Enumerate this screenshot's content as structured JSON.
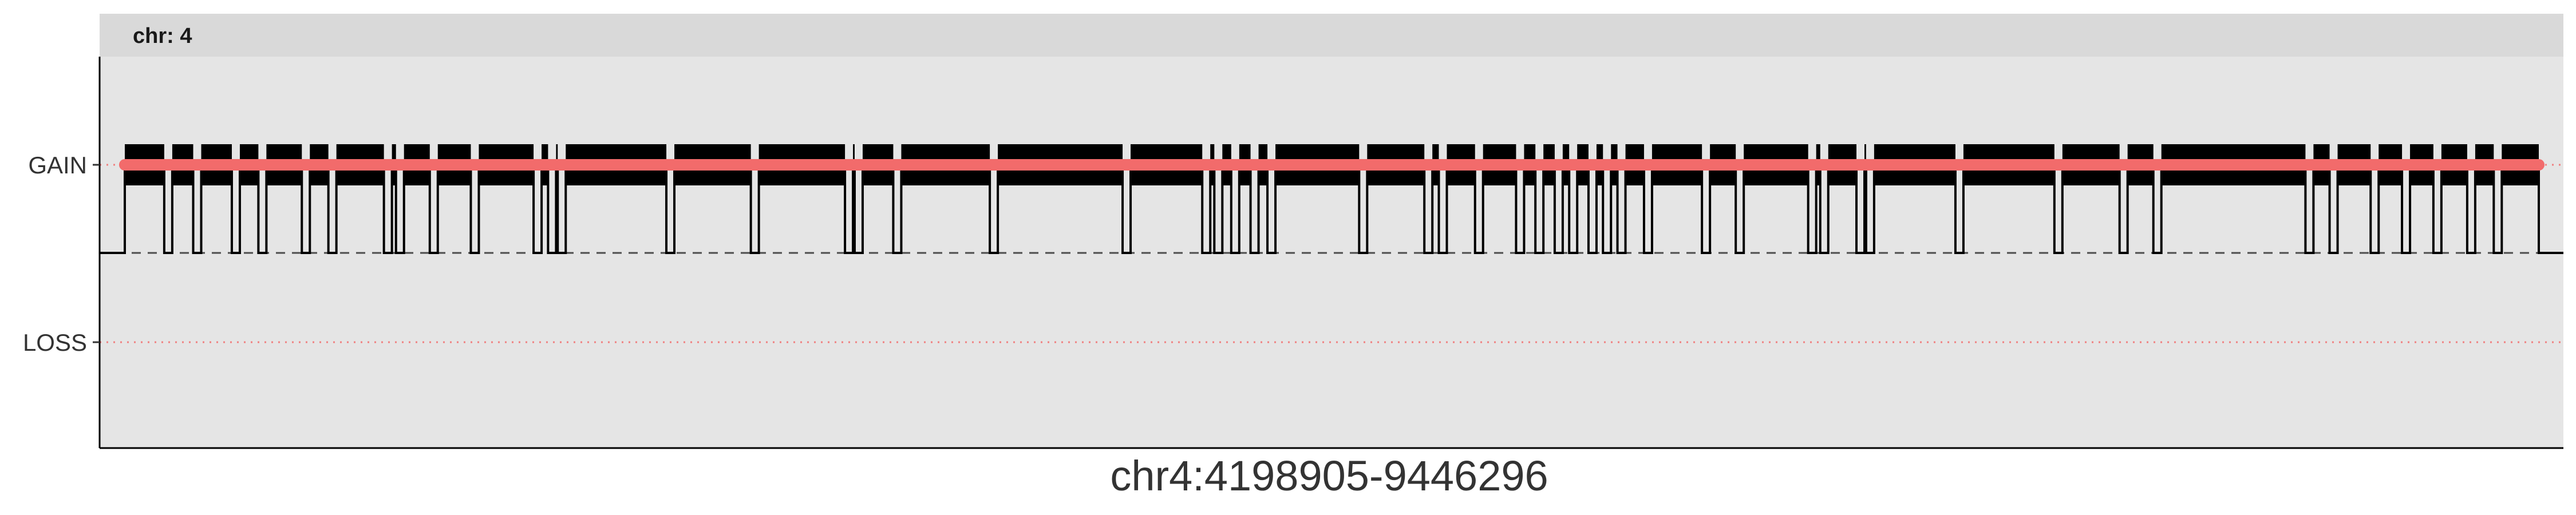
{
  "chart_data": {
    "type": "line",
    "title": "",
    "facet_label": "chr: 4",
    "xlabel": "chr4:4198905-9446296",
    "ylabel": "",
    "y_categories": [
      "LOSS",
      "GAIN"
    ],
    "y_tick_labels": [
      "GAIN",
      "LOSS"
    ],
    "baseline_level": "NEUTRAL",
    "grid": false,
    "legend": "none",
    "series": [
      {
        "kind": "segment_calls",
        "color": "#f26b6b",
        "value": "GAIN"
      },
      {
        "kind": "per_probe_step_trace",
        "color": "#000000",
        "level_high": "GAIN",
        "level_low": "NEUTRAL",
        "dips_to_neutral_fraction": [
          0.018,
          0.03,
          0.046,
          0.057,
          0.075,
          0.086,
          0.109,
          0.114,
          0.128,
          0.145,
          0.171,
          0.177,
          0.181,
          0.226,
          0.261,
          0.3,
          0.304,
          0.32,
          0.36,
          0.415,
          0.448,
          0.453,
          0.46,
          0.468,
          0.475,
          0.513,
          0.54,
          0.546,
          0.561,
          0.578,
          0.586,
          0.594,
          0.6,
          0.608,
          0.614,
          0.62,
          0.631,
          0.655,
          0.669,
          0.699,
          0.704,
          0.719,
          0.723,
          0.76,
          0.801,
          0.828,
          0.842,
          0.905,
          0.915,
          0.932,
          0.945,
          0.958,
          0.972,
          0.983
        ]
      }
    ],
    "colors": {
      "panel_background": "#e5e5e5",
      "strip_background": "#d9d9d9",
      "gain_call": "#f26b6b",
      "step_trace": "#000000",
      "neutral_dashed": "#4d4d4d",
      "reference_dotted": "#f08080"
    }
  }
}
